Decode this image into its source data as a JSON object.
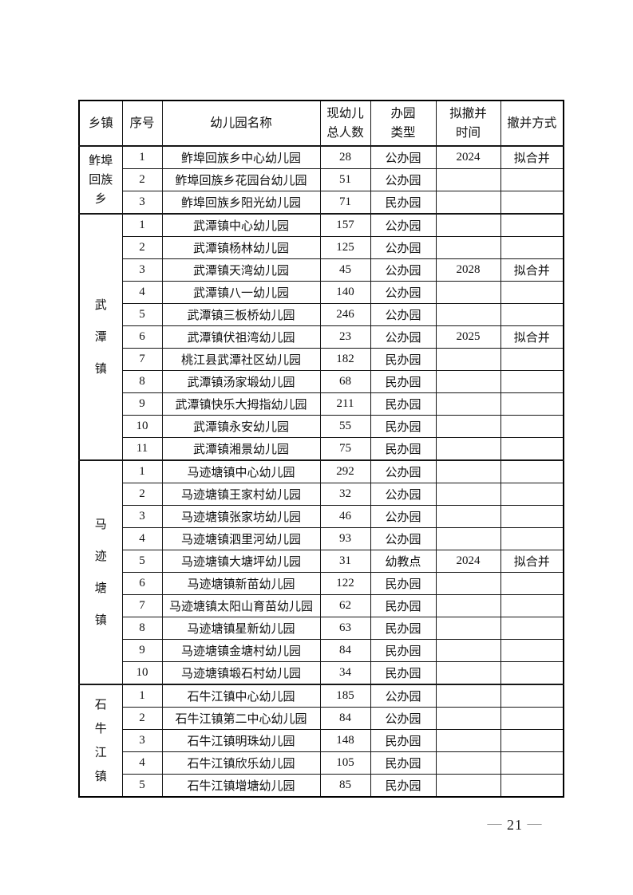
{
  "document": {
    "colors": {
      "page_background": "#ffffff",
      "table_border": "#000000",
      "text": "#111111",
      "footer_dash": "#8f8f8f"
    },
    "footer": {
      "dash": "—",
      "page_number": "21"
    },
    "table": {
      "headers": [
        {
          "id": "township",
          "lines": [
            "乡镇"
          ]
        },
        {
          "id": "index",
          "lines": [
            "序号"
          ]
        },
        {
          "id": "name",
          "lines": [
            "幼儿园名称"
          ]
        },
        {
          "id": "children_total",
          "lines": [
            "现幼儿",
            "总人数"
          ]
        },
        {
          "id": "park_type",
          "lines": [
            "办园",
            "类型"
          ]
        },
        {
          "id": "merge_time",
          "lines": [
            "拟撤并",
            "时间"
          ]
        },
        {
          "id": "merge_method",
          "lines": [
            "撤并方式"
          ]
        }
      ],
      "groups": [
        {
          "township_lines": [
            "鲊埠",
            "回族",
            "乡"
          ],
          "rows": [
            {
              "no": "1",
              "name": "鲊埠回族乡中心幼儿园",
              "children": "28",
              "type": "公办园",
              "time": "2024",
              "method": "拟合并"
            },
            {
              "no": "2",
              "name": "鲊埠回族乡花园台幼儿园",
              "children": "51",
              "type": "公办园",
              "time": "",
              "method": ""
            },
            {
              "no": "3",
              "name": "鲊埠回族乡阳光幼儿园",
              "children": "71",
              "type": "民办园",
              "time": "",
              "method": ""
            }
          ]
        },
        {
          "township_lines": [
            "武",
            "潭",
            "镇"
          ],
          "rows": [
            {
              "no": "1",
              "name": "武潭镇中心幼儿园",
              "children": "157",
              "type": "公办园",
              "time": "",
              "method": ""
            },
            {
              "no": "2",
              "name": "武潭镇杨林幼儿园",
              "children": "125",
              "type": "公办园",
              "time": "",
              "method": ""
            },
            {
              "no": "3",
              "name": "武潭镇天湾幼儿园",
              "children": "45",
              "type": "公办园",
              "time": "2028",
              "method": "拟合并"
            },
            {
              "no": "4",
              "name": "武潭镇八一幼儿园",
              "children": "140",
              "type": "公办园",
              "time": "",
              "method": ""
            },
            {
              "no": "5",
              "name": "武潭镇三板桥幼儿园",
              "children": "246",
              "type": "公办园",
              "time": "",
              "method": ""
            },
            {
              "no": "6",
              "name": "武潭镇伏祖湾幼儿园",
              "children": "23",
              "type": "公办园",
              "time": "2025",
              "method": "拟合并"
            },
            {
              "no": "7",
              "name": "桃江县武潭社区幼儿园",
              "children": "182",
              "type": "民办园",
              "time": "",
              "method": ""
            },
            {
              "no": "8",
              "name": "武潭镇汤家塅幼儿园",
              "children": "68",
              "type": "民办园",
              "time": "",
              "method": ""
            },
            {
              "no": "9",
              "name": "武潭镇快乐大拇指幼儿园",
              "children": "211",
              "type": "民办园",
              "time": "",
              "method": ""
            },
            {
              "no": "10",
              "name": "武潭镇永安幼儿园",
              "children": "55",
              "type": "民办园",
              "time": "",
              "method": ""
            },
            {
              "no": "11",
              "name": "武潭镇湘景幼儿园",
              "children": "75",
              "type": "民办园",
              "time": "",
              "method": ""
            }
          ]
        },
        {
          "township_lines": [
            "马",
            "迹",
            "塘",
            "镇"
          ],
          "rows": [
            {
              "no": "1",
              "name": "马迹塘镇中心幼儿园",
              "children": "292",
              "type": "公办园",
              "time": "",
              "method": ""
            },
            {
              "no": "2",
              "name": "马迹塘镇王家村幼儿园",
              "children": "32",
              "type": "公办园",
              "time": "",
              "method": ""
            },
            {
              "no": "3",
              "name": "马迹塘镇张家坊幼儿园",
              "children": "46",
              "type": "公办园",
              "time": "",
              "method": ""
            },
            {
              "no": "4",
              "name": "马迹塘镇泗里河幼儿园",
              "children": "93",
              "type": "公办园",
              "time": "",
              "method": ""
            },
            {
              "no": "5",
              "name": "马迹塘镇大塘坪幼儿园",
              "children": "31",
              "type": "幼教点",
              "time": "2024",
              "method": "拟合并"
            },
            {
              "no": "6",
              "name": "马迹塘镇新苗幼儿园",
              "children": "122",
              "type": "民办园",
              "time": "",
              "method": ""
            },
            {
              "no": "7",
              "name": "马迹塘镇太阳山育苗幼儿园",
              "children": "62",
              "type": "民办园",
              "time": "",
              "method": ""
            },
            {
              "no": "8",
              "name": "马迹塘镇星新幼儿园",
              "children": "63",
              "type": "民办园",
              "time": "",
              "method": ""
            },
            {
              "no": "9",
              "name": "马迹塘镇金塘村幼儿园",
              "children": "84",
              "type": "民办园",
              "time": "",
              "method": ""
            },
            {
              "no": "10",
              "name": "马迹塘镇塅石村幼儿园",
              "children": "34",
              "type": "民办园",
              "time": "",
              "method": ""
            }
          ]
        },
        {
          "township_lines": [
            "石",
            "牛",
            "江",
            "镇"
          ],
          "rows": [
            {
              "no": "1",
              "name": "石牛江镇中心幼儿园",
              "children": "185",
              "type": "公办园",
              "time": "",
              "method": ""
            },
            {
              "no": "2",
              "name": "石牛江镇第二中心幼儿园",
              "children": "84",
              "type": "公办园",
              "time": "",
              "method": ""
            },
            {
              "no": "3",
              "name": "石牛江镇明珠幼儿园",
              "children": "148",
              "type": "民办园",
              "time": "",
              "method": ""
            },
            {
              "no": "4",
              "name": "石牛江镇欣乐幼儿园",
              "children": "105",
              "type": "民办园",
              "time": "",
              "method": ""
            },
            {
              "no": "5",
              "name": "石牛江镇增塘幼儿园",
              "children": "85",
              "type": "民办园",
              "time": "",
              "method": ""
            }
          ]
        }
      ]
    }
  }
}
